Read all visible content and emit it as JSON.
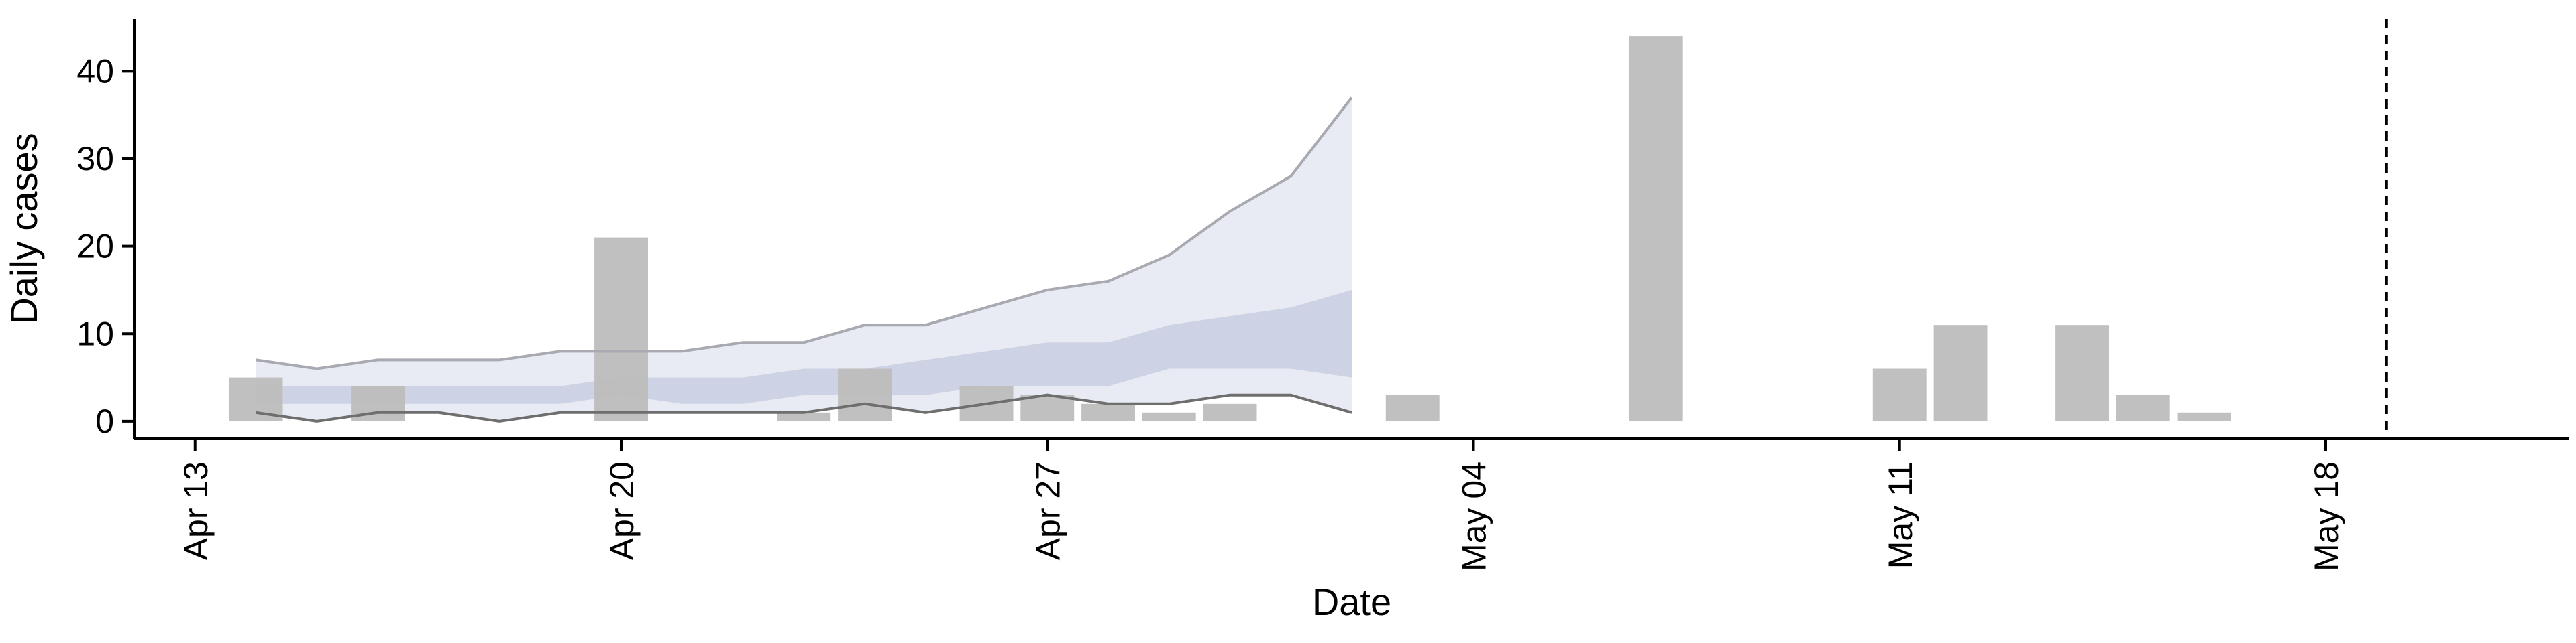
{
  "chart_data": {
    "type": "bar",
    "xlabel": "Date",
    "ylabel": "Daily cases",
    "x_axis": "date",
    "xlim": [
      "2020-04-12",
      "2020-05-22"
    ],
    "ylim": [
      -2,
      46
    ],
    "x_ticks": [
      "2020-04-13",
      "2020-04-20",
      "2020-04-27",
      "2020-05-04",
      "2020-05-11",
      "2020-05-18"
    ],
    "x_tick_labels": [
      "Apr 13",
      "Apr 20",
      "Apr 27",
      "May 04",
      "May 11",
      "May 18"
    ],
    "y_ticks": [
      0,
      10,
      20,
      30,
      40
    ],
    "grid": false,
    "colors": {
      "bars": "#bdbdbd",
      "inner_band": "#c8cfe0",
      "outer_band": "#e8ebf3",
      "upper_line": "#a9a9b1",
      "lower_line": "#6e6e6e",
      "reference_line": "#000000"
    },
    "observed_cases": [
      {
        "date": "2020-04-14",
        "cases": 5
      },
      {
        "date": "2020-04-16",
        "cases": 4
      },
      {
        "date": "2020-04-20",
        "cases": 21
      },
      {
        "date": "2020-04-23",
        "cases": 1
      },
      {
        "date": "2020-04-24",
        "cases": 6
      },
      {
        "date": "2020-04-26",
        "cases": 4
      },
      {
        "date": "2020-04-27",
        "cases": 3
      },
      {
        "date": "2020-04-28",
        "cases": 2
      },
      {
        "date": "2020-04-29",
        "cases": 1
      },
      {
        "date": "2020-04-30",
        "cases": 2
      },
      {
        "date": "2020-05-03",
        "cases": 3
      },
      {
        "date": "2020-05-07",
        "cases": 44
      },
      {
        "date": "2020-05-11",
        "cases": 6
      },
      {
        "date": "2020-05-12",
        "cases": 11
      },
      {
        "date": "2020-05-14",
        "cases": 11
      },
      {
        "date": "2020-05-15",
        "cases": 3
      },
      {
        "date": "2020-05-16",
        "cases": 1
      }
    ],
    "projection": {
      "dates": [
        "2020-04-14",
        "2020-04-15",
        "2020-04-16",
        "2020-04-17",
        "2020-04-18",
        "2020-04-19",
        "2020-04-20",
        "2020-04-21",
        "2020-04-22",
        "2020-04-23",
        "2020-04-24",
        "2020-04-25",
        "2020-04-26",
        "2020-04-27",
        "2020-04-28",
        "2020-04-29",
        "2020-04-30",
        "2020-05-01",
        "2020-05-02"
      ],
      "upper_line": [
        7,
        6,
        7,
        7,
        7,
        8,
        8,
        8,
        9,
        9,
        11,
        11,
        13,
        15,
        16,
        19,
        24,
        28,
        37
      ],
      "lower_line": [
        1,
        0,
        1,
        1,
        0,
        1,
        1,
        1,
        1,
        1,
        2,
        1,
        2,
        3,
        2,
        2,
        3,
        3,
        1
      ],
      "inner_upper": [
        4,
        4,
        4,
        4,
        4,
        4,
        5,
        5,
        5,
        6,
        6,
        7,
        8,
        9,
        9,
        11,
        12,
        13,
        15
      ],
      "inner_lower": [
        2,
        2,
        2,
        2,
        2,
        2,
        3,
        2,
        2,
        3,
        3,
        3,
        4,
        4,
        4,
        6,
        6,
        6,
        5
      ]
    },
    "reference_line_date": "2020-05-19"
  }
}
